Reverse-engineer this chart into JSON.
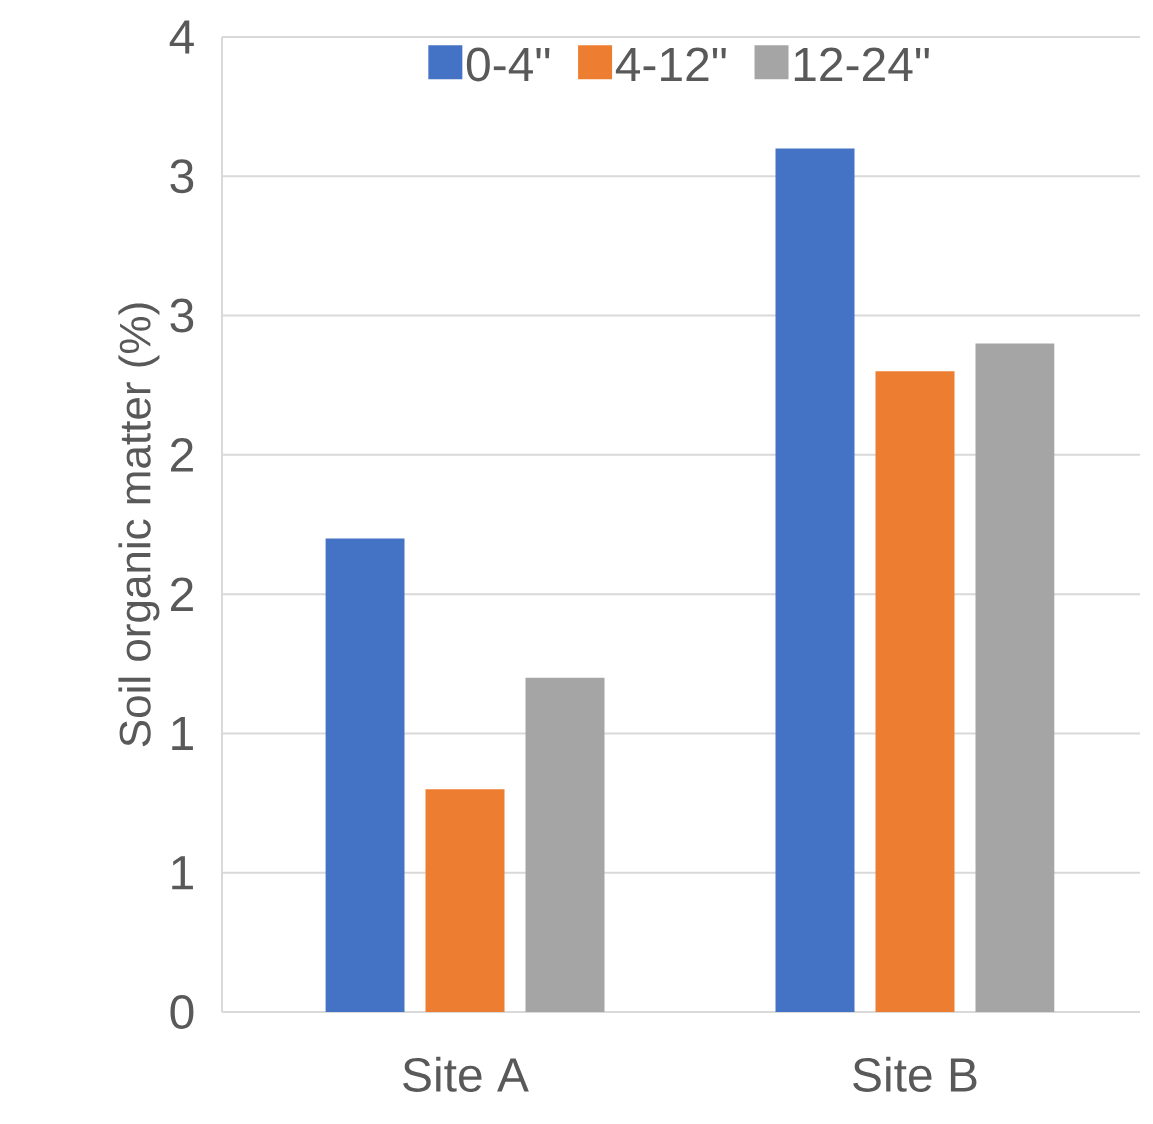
{
  "chart_data": {
    "type": "bar",
    "ylabel": "Soil organic matter (%)",
    "categories": [
      "Site A",
      "Site B"
    ],
    "series": [
      {
        "name": "0-4\"",
        "color": "#4472c4",
        "values": [
          1.7,
          3.1
        ]
      },
      {
        "name": "4-12\"",
        "color": "#ed7d31",
        "values": [
          0.8,
          2.3
        ]
      },
      {
        "name": "12-24\"",
        "color": "#a5a5a5",
        "values": [
          1.2,
          2.4
        ]
      }
    ],
    "ylim": [
      0,
      3.5
    ],
    "yticks": [
      0,
      {
        "value": 0.5,
        "label": "1"
      },
      1,
      {
        "value": 1.5,
        "label": "2"
      },
      2,
      {
        "value": 2.5,
        "label": "3"
      },
      3,
      {
        "value": 3.5,
        "label": "4"
      }
    ],
    "grid": "y",
    "legend": "top"
  }
}
